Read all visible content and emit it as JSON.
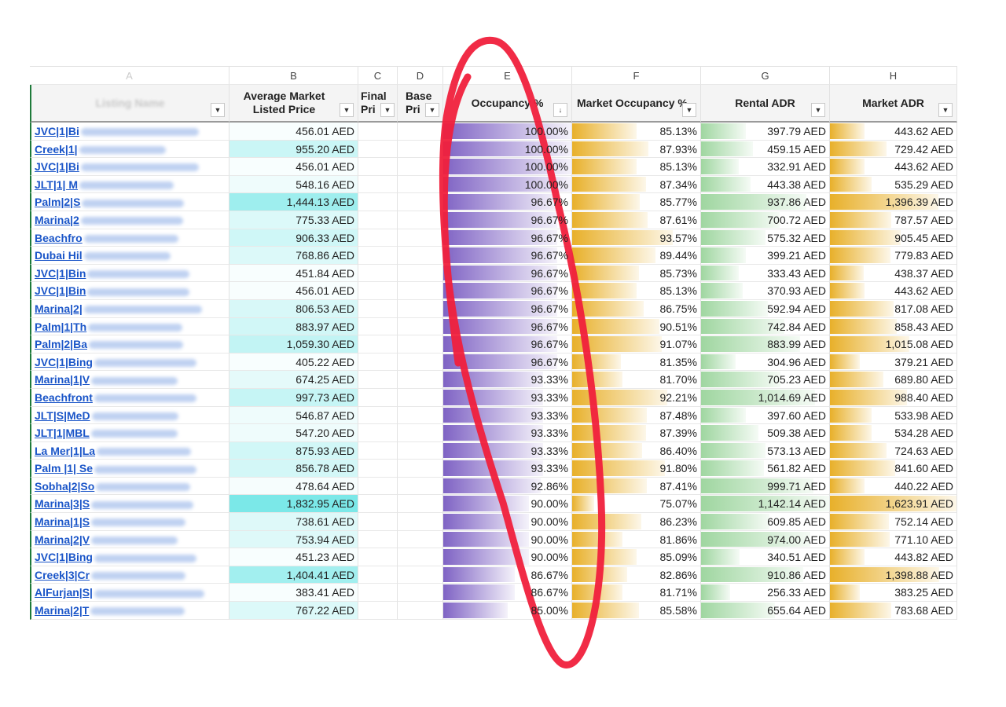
{
  "column_letters": [
    "A",
    "B",
    "C",
    "D",
    "E",
    "F",
    "G",
    "H"
  ],
  "headers": {
    "a": "Listing Name",
    "b": [
      "Average Market",
      "Listed Price"
    ],
    "c": [
      "Final",
      "Pri"
    ],
    "d": [
      "Base",
      "Pri"
    ],
    "e": "Occupancy %",
    "f": "Market Occupancy %",
    "g": "Rental ADR",
    "h": "Market ADR"
  },
  "colors": {
    "occupancy_bar": "#7f63c4",
    "market_occupancy_bar": "#e8b02a",
    "rental_adr_bar": "#9fd6a0",
    "market_adr_bar": "#e8b02a",
    "price_fill": "#4fe0e0",
    "link": "#1a55c8",
    "annotation": "#f0203c"
  },
  "rows": [
    {
      "name": "JVC|1|Bi",
      "b": "456.01 AED",
      "b_v": 456.01,
      "e": "100.00%",
      "e_v": 100.0,
      "f": "85.13%",
      "f_v": 85.13,
      "g": "397.79 AED",
      "g_v": 397.79,
      "h": "443.62 AED",
      "h_v": 443.62
    },
    {
      "name": "Creek|1|",
      "b": "955.20 AED",
      "b_v": 955.2,
      "e": "100.00%",
      "e_v": 100.0,
      "f": "87.93%",
      "f_v": 87.93,
      "g": "459.15 AED",
      "g_v": 459.15,
      "h": "729.42 AED",
      "h_v": 729.42
    },
    {
      "name": "JVC|1|Bi",
      "b": "456.01 AED",
      "b_v": 456.01,
      "e": "100.00%",
      "e_v": 100.0,
      "f": "85.13%",
      "f_v": 85.13,
      "g": "332.91 AED",
      "g_v": 332.91,
      "h": "443.62 AED",
      "h_v": 443.62
    },
    {
      "name": "JLT|1| M",
      "b": "548.16 AED",
      "b_v": 548.16,
      "e": "100.00%",
      "e_v": 100.0,
      "f": "87.34%",
      "f_v": 87.34,
      "g": "443.38 AED",
      "g_v": 443.38,
      "h": "535.29 AED",
      "h_v": 535.29
    },
    {
      "name": "Palm|2|S",
      "b": "1,444.13 AED",
      "b_v": 1444.13,
      "e": "96.67%",
      "e_v": 96.67,
      "f": "85.77%",
      "f_v": 85.77,
      "g": "937.86 AED",
      "g_v": 937.86,
      "h": "1,396.39 AED",
      "h_v": 1396.39
    },
    {
      "name": "Marina|2",
      "b": "775.33 AED",
      "b_v": 775.33,
      "e": "96.67%",
      "e_v": 96.67,
      "f": "87.61%",
      "f_v": 87.61,
      "g": "700.72 AED",
      "g_v": 700.72,
      "h": "787.57 AED",
      "h_v": 787.57
    },
    {
      "name": "Beachfro",
      "b": "906.33 AED",
      "b_v": 906.33,
      "e": "96.67%",
      "e_v": 96.67,
      "f": "93.57%",
      "f_v": 93.57,
      "g": "575.32 AED",
      "g_v": 575.32,
      "h": "905.45 AED",
      "h_v": 905.45
    },
    {
      "name": "Dubai Hil",
      "b": "768.86 AED",
      "b_v": 768.86,
      "e": "96.67%",
      "e_v": 96.67,
      "f": "89.44%",
      "f_v": 89.44,
      "g": "399.21 AED",
      "g_v": 399.21,
      "h": "779.83 AED",
      "h_v": 779.83
    },
    {
      "name": "JVC|1|Bin",
      "b": "451.84 AED",
      "b_v": 451.84,
      "e": "96.67%",
      "e_v": 96.67,
      "f": "85.73%",
      "f_v": 85.73,
      "g": "333.43 AED",
      "g_v": 333.43,
      "h": "438.37 AED",
      "h_v": 438.37
    },
    {
      "name": "JVC|1|Bin",
      "b": "456.01 AED",
      "b_v": 456.01,
      "e": "96.67%",
      "e_v": 96.67,
      "f": "85.13%",
      "f_v": 85.13,
      "g": "370.93 AED",
      "g_v": 370.93,
      "h": "443.62 AED",
      "h_v": 443.62
    },
    {
      "name": "Marina|2|",
      "b": "806.53 AED",
      "b_v": 806.53,
      "e": "96.67%",
      "e_v": 96.67,
      "f": "86.75%",
      "f_v": 86.75,
      "g": "592.94 AED",
      "g_v": 592.94,
      "h": "817.08 AED",
      "h_v": 817.08
    },
    {
      "name": "Palm|1|Th",
      "b": "883.97 AED",
      "b_v": 883.97,
      "e": "96.67%",
      "e_v": 96.67,
      "f": "90.51%",
      "f_v": 90.51,
      "g": "742.84 AED",
      "g_v": 742.84,
      "h": "858.43 AED",
      "h_v": 858.43
    },
    {
      "name": "Palm|2|Ba",
      "b": "1,059.30 AED",
      "b_v": 1059.3,
      "e": "96.67%",
      "e_v": 96.67,
      "f": "91.07%",
      "f_v": 91.07,
      "g": "883.99 AED",
      "g_v": 883.99,
      "h": "1,015.08 AED",
      "h_v": 1015.08
    },
    {
      "name": "JVC|1|Bing",
      "b": "405.22 AED",
      "b_v": 405.22,
      "e": "96.67%",
      "e_v": 96.67,
      "f": "81.35%",
      "f_v": 81.35,
      "g": "304.96 AED",
      "g_v": 304.96,
      "h": "379.21 AED",
      "h_v": 379.21
    },
    {
      "name": "Marina|1|V",
      "b": "674.25 AED",
      "b_v": 674.25,
      "e": "93.33%",
      "e_v": 93.33,
      "f": "81.70%",
      "f_v": 81.7,
      "g": "705.23 AED",
      "g_v": 705.23,
      "h": "689.80 AED",
      "h_v": 689.8
    },
    {
      "name": "Beachfront",
      "b": "997.73 AED",
      "b_v": 997.73,
      "e": "93.33%",
      "e_v": 93.33,
      "f": "92.21%",
      "f_v": 92.21,
      "g": "1,014.69 AED",
      "g_v": 1014.69,
      "h": "988.40 AED",
      "h_v": 988.4
    },
    {
      "name": "JLT|S|MeD",
      "b": "546.87 AED",
      "b_v": 546.87,
      "e": "93.33%",
      "e_v": 93.33,
      "f": "87.48%",
      "f_v": 87.48,
      "g": "397.60 AED",
      "g_v": 397.6,
      "h": "533.98 AED",
      "h_v": 533.98
    },
    {
      "name": "JLT|1|MBL",
      "b": "547.20 AED",
      "b_v": 547.2,
      "e": "93.33%",
      "e_v": 93.33,
      "f": "87.39%",
      "f_v": 87.39,
      "g": "509.38 AED",
      "g_v": 509.38,
      "h": "534.28 AED",
      "h_v": 534.28
    },
    {
      "name": "La Mer|1|La",
      "b": "875.93 AED",
      "b_v": 875.93,
      "e": "93.33%",
      "e_v": 93.33,
      "f": "86.40%",
      "f_v": 86.4,
      "g": "573.13 AED",
      "g_v": 573.13,
      "h": "724.63 AED",
      "h_v": 724.63
    },
    {
      "name": "Palm |1| Se",
      "b": "856.78 AED",
      "b_v": 856.78,
      "e": "93.33%",
      "e_v": 93.33,
      "f": "91.80%",
      "f_v": 91.8,
      "g": "561.82 AED",
      "g_v": 561.82,
      "h": "841.60 AED",
      "h_v": 841.6
    },
    {
      "name": "Sobha|2|So",
      "b": "478.64 AED",
      "b_v": 478.64,
      "e": "92.86%",
      "e_v": 92.86,
      "f": "87.41%",
      "f_v": 87.41,
      "g": "999.71 AED",
      "g_v": 999.71,
      "h": "440.22 AED",
      "h_v": 440.22
    },
    {
      "name": "Marina|3|S",
      "b": "1,832.95 AED",
      "b_v": 1832.95,
      "e": "90.00%",
      "e_v": 90.0,
      "f": "75.07%",
      "f_v": 75.07,
      "g": "1,142.14 AED",
      "g_v": 1142.14,
      "h": "1,623.91 AED",
      "h_v": 1623.91
    },
    {
      "name": "Marina|1|S",
      "b": "738.61 AED",
      "b_v": 738.61,
      "e": "90.00%",
      "e_v": 90.0,
      "f": "86.23%",
      "f_v": 86.23,
      "g": "609.85 AED",
      "g_v": 609.85,
      "h": "752.14 AED",
      "h_v": 752.14
    },
    {
      "name": "Marina|2|V",
      "b": "753.94 AED",
      "b_v": 753.94,
      "e": "90.00%",
      "e_v": 90.0,
      "f": "81.86%",
      "f_v": 81.86,
      "g": "974.00 AED",
      "g_v": 974.0,
      "h": "771.10 AED",
      "h_v": 771.1
    },
    {
      "name": "JVC|1|Bing",
      "b": "451.23 AED",
      "b_v": 451.23,
      "e": "90.00%",
      "e_v": 90.0,
      "f": "85.09%",
      "f_v": 85.09,
      "g": "340.51 AED",
      "g_v": 340.51,
      "h": "443.82 AED",
      "h_v": 443.82
    },
    {
      "name": "Creek|3|Cr",
      "b": "1,404.41 AED",
      "b_v": 1404.41,
      "e": "86.67%",
      "e_v": 86.67,
      "f": "82.86%",
      "f_v": 82.86,
      "g": "910.86 AED",
      "g_v": 910.86,
      "h": "1,398.88 AED",
      "h_v": 1398.88
    },
    {
      "name": "AlFurjan|S|",
      "b": "383.41 AED",
      "b_v": 383.41,
      "e": "86.67%",
      "e_v": 86.67,
      "f": "81.71%",
      "f_v": 81.71,
      "g": "256.33 AED",
      "g_v": 256.33,
      "h": "383.25 AED",
      "h_v": 383.25
    },
    {
      "name": "Marina|2|T",
      "b": "767.22 AED",
      "b_v": 767.22,
      "e": "85.00%",
      "e_v": 85.0,
      "f": "85.58%",
      "f_v": 85.58,
      "g": "655.64 AED",
      "g_v": 655.64,
      "h": "783.68 AED",
      "h_v": 783.68
    }
  ]
}
